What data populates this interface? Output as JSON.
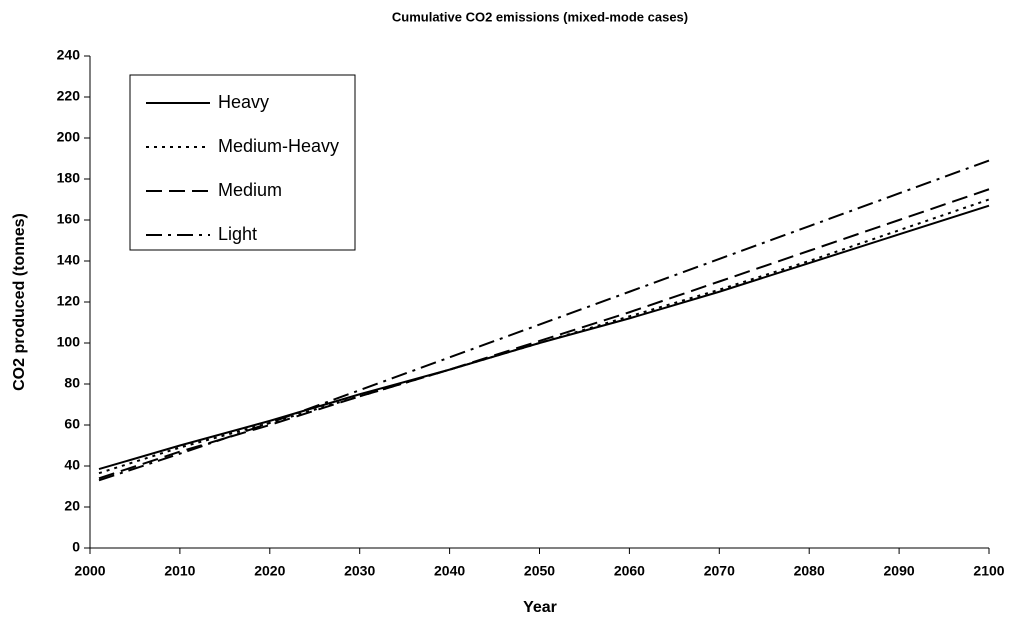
{
  "chart_data": {
    "type": "line",
    "title": "Cumulative CO2 emissions (mixed-mode cases)",
    "x_label": "Year",
    "y_label": "CO2 produced (tonnes)",
    "x": [
      2001,
      2010,
      2020,
      2030,
      2040,
      2050,
      2060,
      2070,
      2080,
      2090,
      2100
    ],
    "series": [
      {
        "name": "Heavy",
        "color": "#000000",
        "dash": "solid",
        "values": [
          38.5,
          50,
          62,
          75,
          87,
          100,
          112,
          125,
          139,
          153,
          167
        ]
      },
      {
        "name": "Medium-Heavy",
        "color": "#000000",
        "dash": "dotted",
        "values": [
          36.5,
          49,
          61,
          74,
          87,
          100,
          113,
          126,
          140,
          155,
          170
        ]
      },
      {
        "name": "Medium",
        "color": "#000000",
        "dash": "dashed",
        "values": [
          34,
          47,
          60,
          74,
          87,
          101,
          115,
          130,
          145,
          160,
          175
        ]
      },
      {
        "name": "Light",
        "color": "#000000",
        "dash": "dashdot",
        "values": [
          33,
          46,
          61,
          77,
          93,
          109,
          125,
          141,
          157,
          173,
          189
        ]
      }
    ],
    "xlim": [
      2000,
      2100
    ],
    "xticks": [
      2000,
      2010,
      2020,
      2030,
      2040,
      2050,
      2060,
      2070,
      2080,
      2090,
      2100
    ],
    "ylim": [
      0,
      240
    ],
    "yticks": [
      0,
      20,
      40,
      60,
      80,
      100,
      120,
      140,
      160,
      180,
      200,
      220,
      240
    ],
    "grid": false,
    "legend": "upper left"
  }
}
